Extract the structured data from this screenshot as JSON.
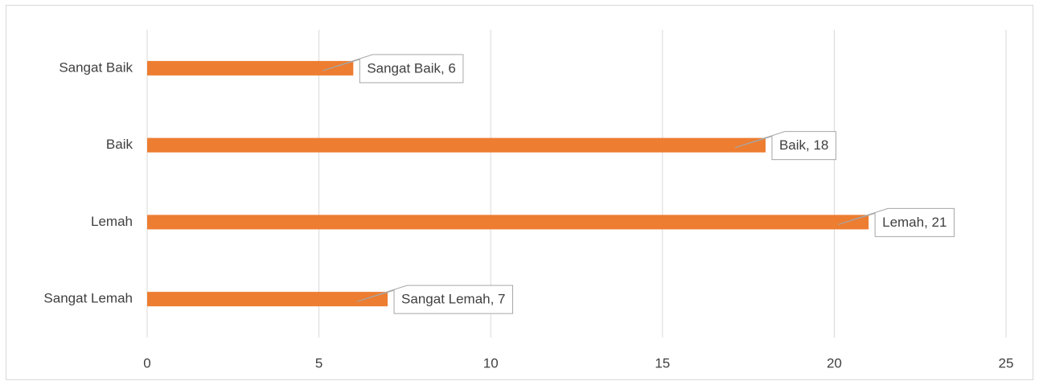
{
  "chart_data": {
    "type": "hbar",
    "categories": [
      "Sangat Baik",
      "Baik",
      "Lemah",
      "Sangat Lemah"
    ],
    "values": [
      6,
      18,
      21,
      7
    ],
    "value_labels": [
      "Sangat Baik, 6",
      "Baik, 18",
      "Lemah, 21",
      "Sangat Lemah, 7"
    ],
    "color": "#ed7d31",
    "xlim": [
      0,
      25
    ],
    "xticks": [
      0,
      5,
      10,
      15,
      20,
      25
    ],
    "grid": true
  }
}
